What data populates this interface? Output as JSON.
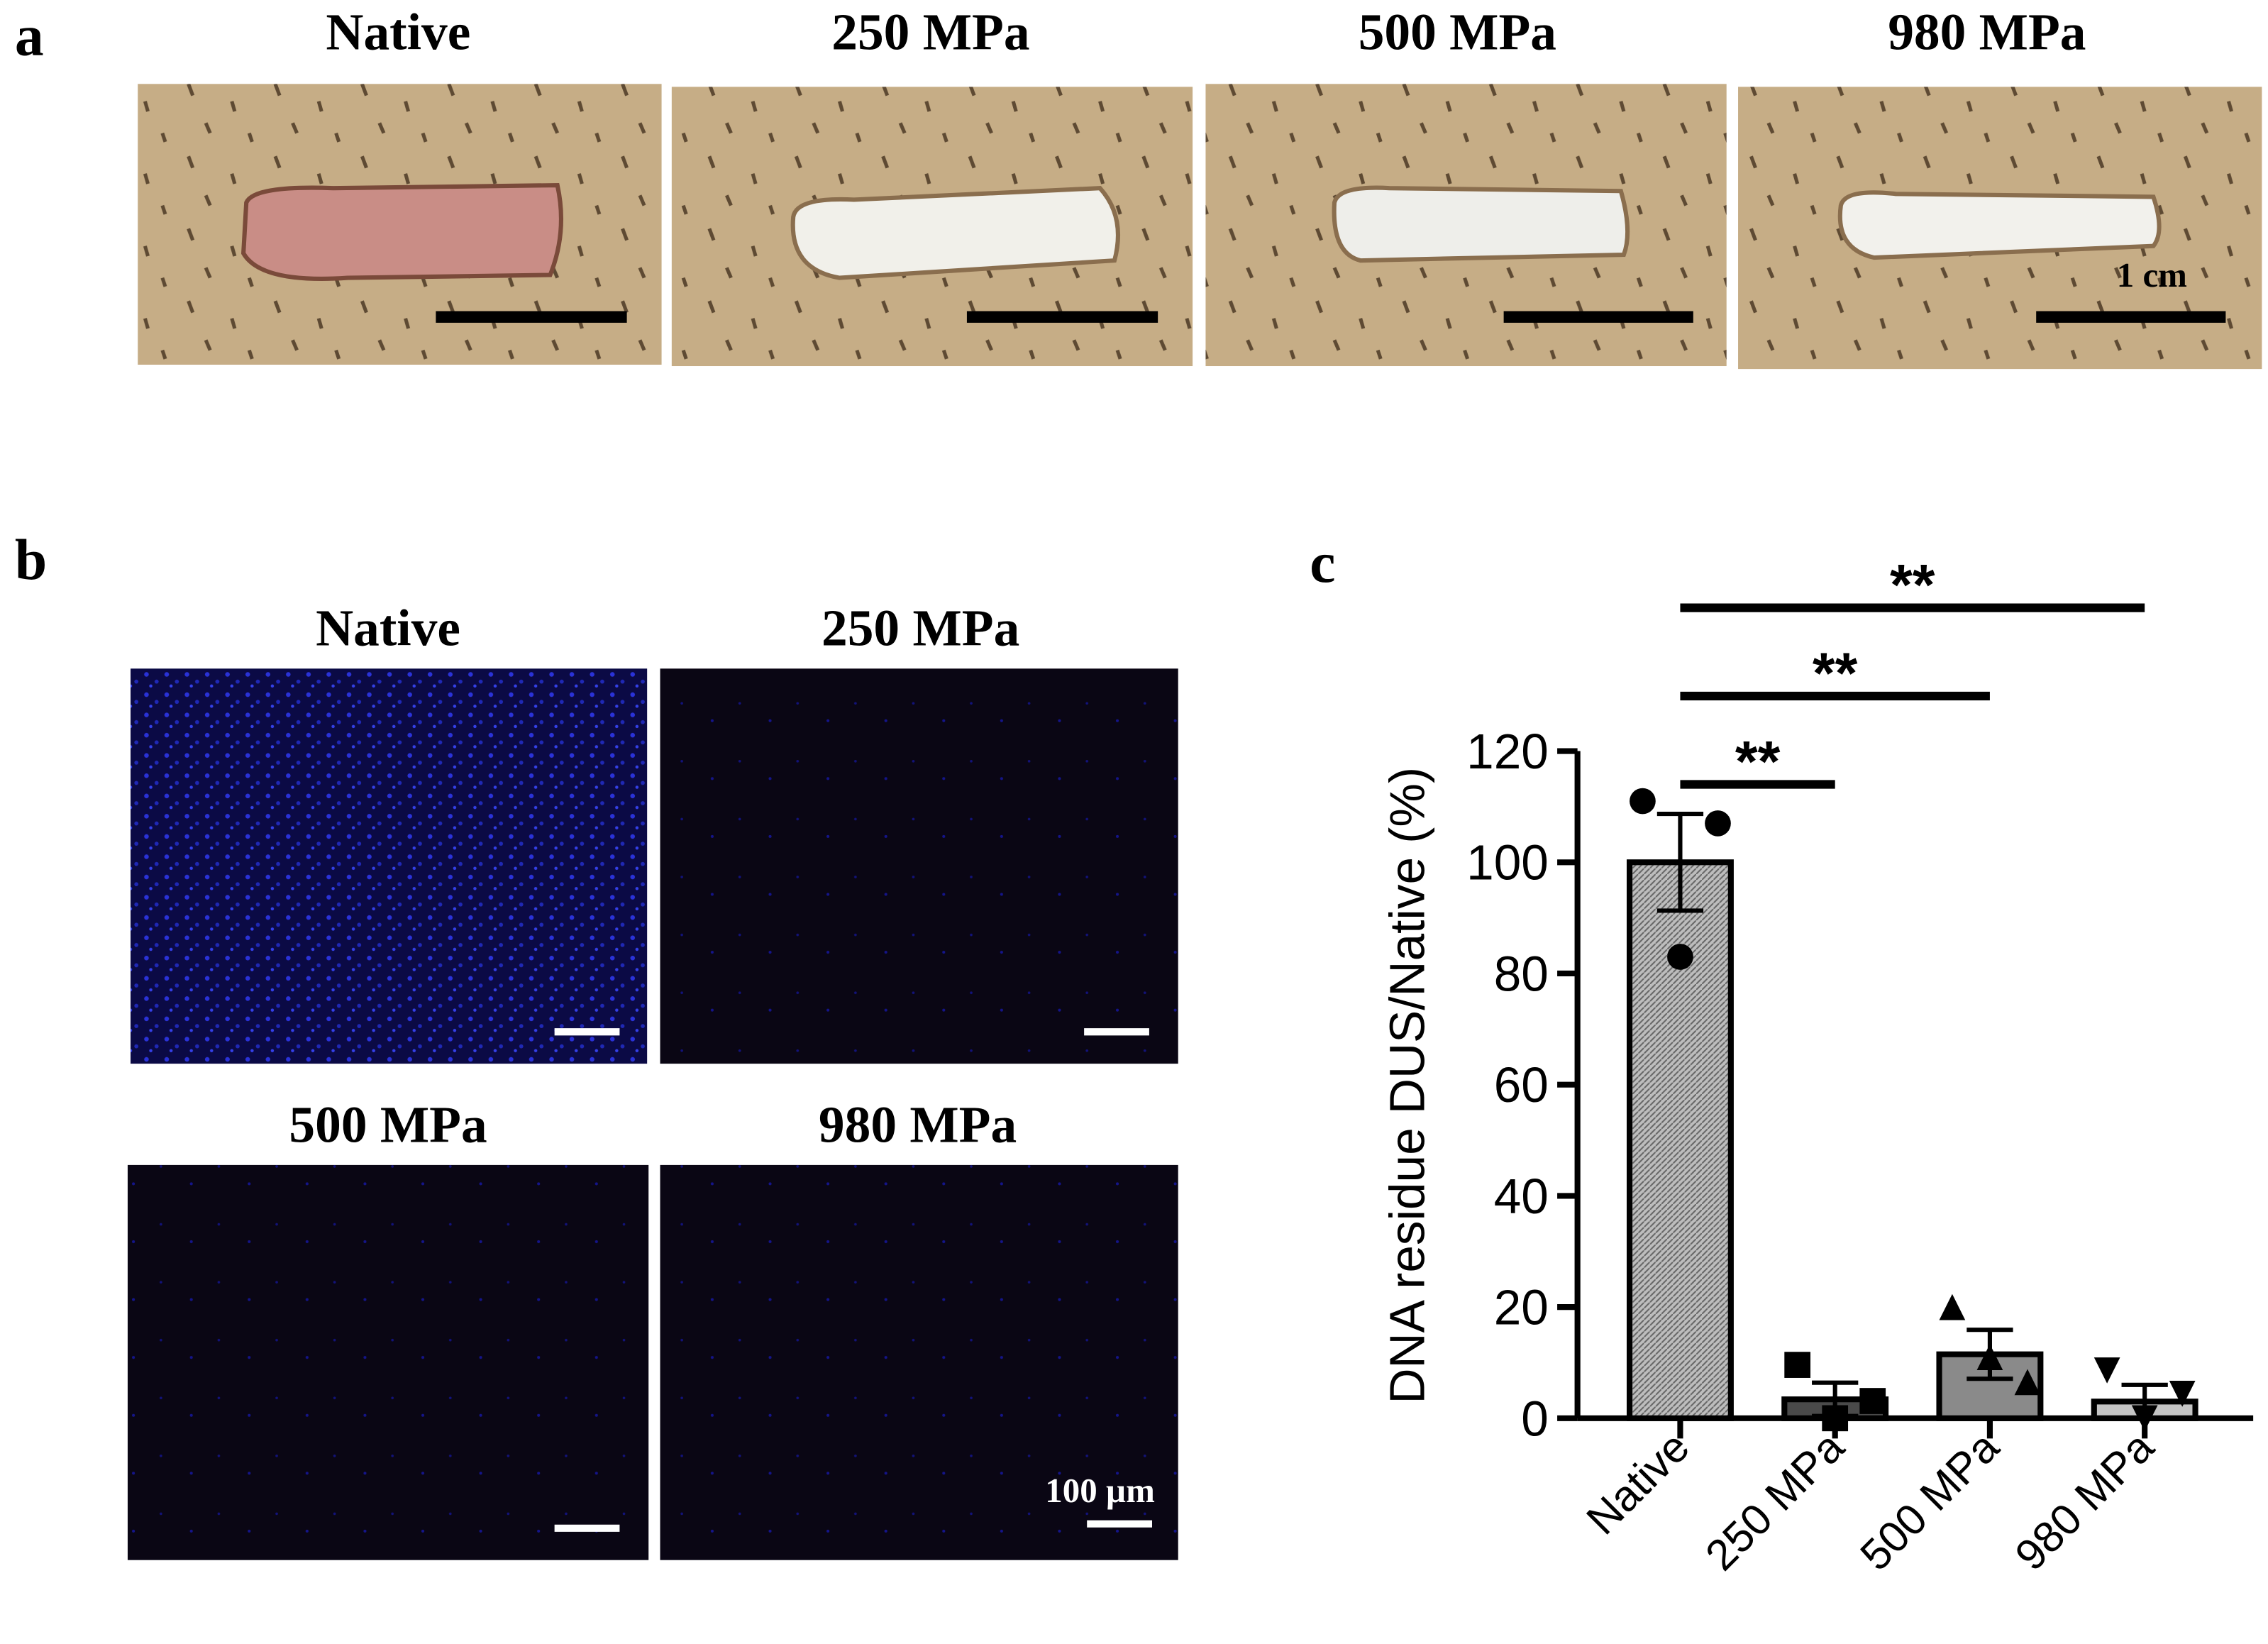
{
  "panel_a": {
    "label": "a",
    "titles": [
      "Native",
      "250 MPa",
      "500 MPa",
      "980 MPa"
    ],
    "scale_label": "1 cm"
  },
  "panel_b": {
    "label": "b",
    "titles": [
      "Native",
      "250 MPa",
      "500 MPa",
      "980 MPa"
    ],
    "scale_label": "100 µm"
  },
  "chart_data": {
    "type": "bar",
    "panel_label": "c",
    "ylabel": "DNA residue DUS/Native (%)",
    "categories": [
      "Native",
      "250 MPa",
      "500 MPa",
      "980 MPa"
    ],
    "values": [
      100,
      3.4,
      11.5,
      3
    ],
    "errors": [
      8.7,
      3,
      4.4,
      3
    ],
    "points": [
      [
        111,
        107,
        83
      ],
      [
        9.6,
        3.1,
        0
      ],
      [
        20,
        6.5,
        11
      ],
      [
        8.6,
        4.4,
        0
      ]
    ],
    "colors": [
      "#a9a9a9",
      "#4a4a4a",
      "#8a8a8a",
      "#c4c4c4"
    ],
    "markers": [
      "circle",
      "square",
      "triangle",
      "triangle-down"
    ],
    "ylim": [
      0,
      120
    ],
    "yticks": [
      0,
      20,
      40,
      60,
      80,
      100,
      120
    ],
    "significance": [
      {
        "label": "**",
        "pair": [
          0,
          1
        ]
      },
      {
        "label": "**",
        "pair": [
          0,
          2
        ]
      },
      {
        "label": "**",
        "pair": [
          0,
          3
        ]
      }
    ]
  }
}
